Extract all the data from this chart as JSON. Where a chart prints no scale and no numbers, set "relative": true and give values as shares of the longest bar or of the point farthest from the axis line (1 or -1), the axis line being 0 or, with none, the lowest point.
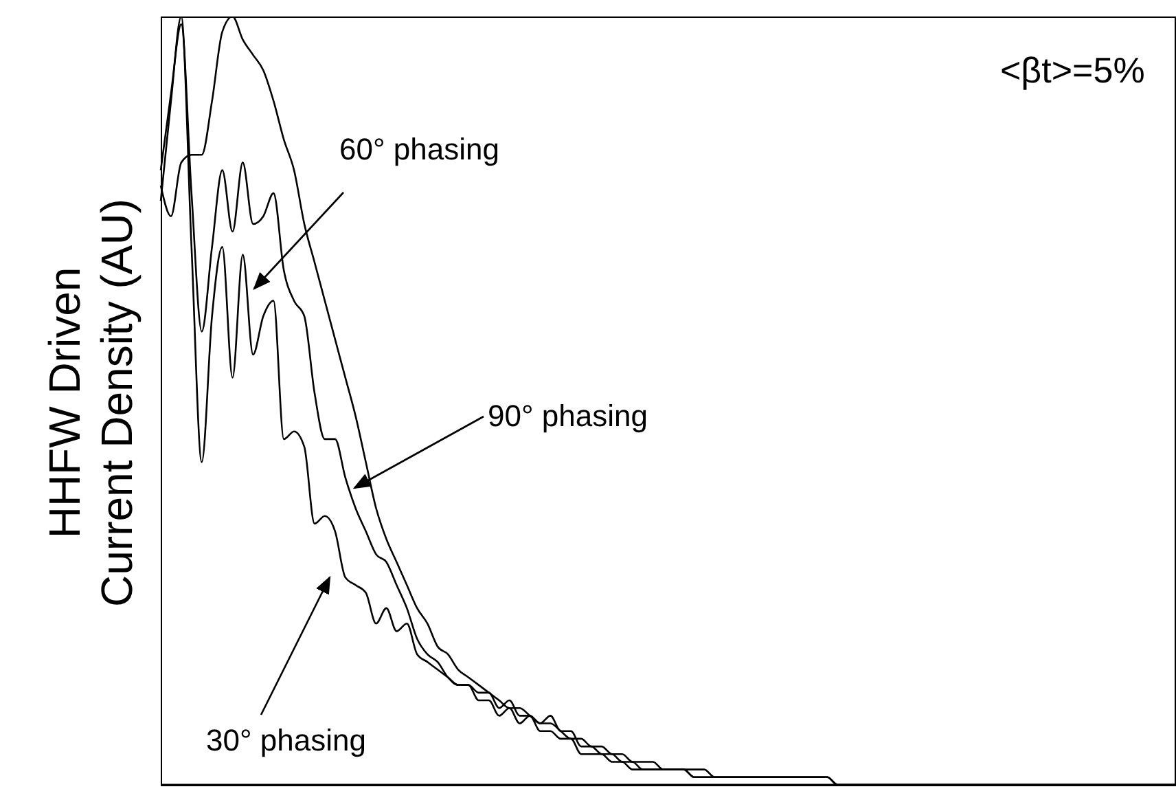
{
  "chart_data": {
    "type": "line",
    "relative": true,
    "ylabel": "HHFW Driven\nCurrent Density (AU)",
    "annotations": [
      "<βt>=5%",
      "60° phasing",
      "90° phasing",
      "30° phasing"
    ],
    "categories": [
      null,
      null,
      null,
      null,
      null,
      null,
      null,
      null,
      null,
      null,
      null,
      null,
      null,
      null,
      null,
      null,
      null,
      null,
      null,
      null,
      null,
      null,
      null,
      null,
      null,
      null,
      null,
      null,
      null,
      null,
      null,
      null,
      null,
      null,
      null,
      null,
      null,
      null,
      null,
      null,
      null,
      null,
      null,
      null,
      null,
      null,
      null,
      null,
      null,
      null,
      null,
      null,
      null,
      null,
      null,
      null,
      null,
      null,
      null,
      null,
      null,
      null,
      null,
      null,
      null,
      null,
      null,
      null,
      null,
      null,
      null,
      null,
      null,
      null,
      null,
      null,
      null,
      null,
      null,
      null,
      null,
      null,
      null,
      null,
      null,
      null,
      null,
      null,
      null,
      null,
      null,
      null,
      null,
      null,
      null,
      null,
      null,
      null,
      null,
      null
    ],
    "series": [
      {
        "color": "#000000",
        "values": [
          0.8,
          0.9,
          0.99,
          0.77,
          0.59,
          0.7,
          0.8,
          0.72,
          0.81,
          0.73,
          0.74,
          0.77,
          0.67,
          0.63,
          0.61,
          0.51,
          0.45,
          0.45,
          0.4,
          0.36,
          0.33,
          0.3,
          0.29,
          0.26,
          0.23,
          0.19,
          0.17,
          0.16,
          0.14,
          0.13,
          0.13,
          0.12,
          0.12,
          0.1,
          0.11,
          0.09,
          0.09,
          0.08,
          0.09,
          0.07,
          0.07,
          0.05,
          0.05,
          0.04,
          0.04,
          0.03,
          0.03,
          0.02,
          0.02,
          0.02,
          0.02,
          0.02,
          0.01,
          0.01,
          0.01,
          0.01,
          0.01,
          0.01,
          0.01,
          0.01,
          0.01,
          0.01,
          0.01,
          0.01,
          0.01,
          0.01,
          0,
          0,
          0,
          0,
          0,
          0,
          0,
          0,
          0,
          0,
          0,
          0,
          0,
          0,
          0,
          0,
          0,
          0,
          0,
          0,
          0,
          0,
          0,
          0,
          0,
          0,
          0,
          0,
          0,
          0,
          0,
          0,
          0,
          0
        ]
      },
      {
        "color": "#000000",
        "values": [
          0.78,
          0.74,
          0.81,
          0.82,
          0.82,
          0.89,
          0.98,
          1.0,
          0.97,
          0.95,
          0.93,
          0.89,
          0.84,
          0.8,
          0.73,
          0.68,
          0.63,
          0.58,
          0.53,
          0.48,
          0.42,
          0.36,
          0.32,
          0.29,
          0.26,
          0.23,
          0.21,
          0.18,
          0.17,
          0.15,
          0.14,
          0.13,
          0.12,
          0.11,
          0.1,
          0.1,
          0.09,
          0.08,
          0.08,
          0.07,
          0.06,
          0.06,
          0.05,
          0.05,
          0.04,
          0.04,
          0.03,
          0.03,
          0.03,
          0.02,
          0.02,
          0.02,
          0.02,
          0.02,
          0.01,
          0.01,
          0.01,
          0.01,
          0.01,
          0.01,
          0.01,
          0.01,
          0.01,
          0.01,
          0.01,
          0.01,
          0,
          0,
          0,
          0,
          0,
          0,
          0,
          0,
          0,
          0,
          0,
          0,
          0,
          0,
          0,
          0,
          0,
          0,
          0,
          0,
          0,
          0,
          0,
          0,
          0,
          0,
          0,
          0,
          0,
          0,
          0,
          0,
          0,
          0
        ]
      },
      {
        "color": "#000000",
        "values": [
          0.76,
          0.89,
          1.0,
          0.7,
          0.42,
          0.61,
          0.7,
          0.53,
          0.69,
          0.56,
          0.61,
          0.63,
          0.45,
          0.46,
          0.44,
          0.34,
          0.35,
          0.33,
          0.27,
          0.26,
          0.25,
          0.21,
          0.23,
          0.2,
          0.21,
          0.17,
          0.16,
          0.15,
          0.14,
          0.13,
          0.13,
          0.11,
          0.11,
          0.09,
          0.1,
          0.08,
          0.09,
          0.07,
          0.07,
          0.06,
          0.06,
          0.04,
          0.04,
          0.04,
          0.03,
          0.03,
          0.02,
          0.02,
          0.02,
          0.02,
          0.02,
          0.02,
          0.01,
          0.01,
          0.01,
          0.01,
          0.01,
          0.01,
          0.01,
          0.01,
          0.01,
          0.01,
          0.01,
          0.01,
          0.01,
          0.01,
          0,
          0,
          0,
          0,
          0,
          0,
          0,
          0,
          0,
          0,
          0,
          0,
          0,
          0,
          0,
          0,
          0,
          0,
          0,
          0,
          0,
          0,
          0,
          0,
          0,
          0,
          0,
          0,
          0,
          0,
          0,
          0,
          0,
          0
        ]
      }
    ]
  }
}
